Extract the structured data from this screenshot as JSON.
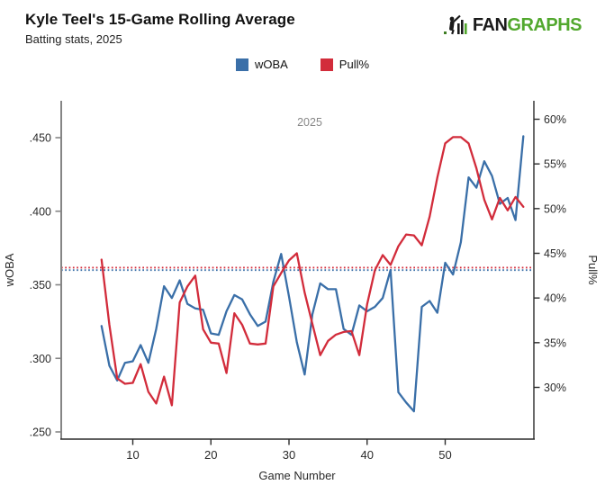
{
  "header": {
    "title": "Kyle Teel's 15-Game Rolling Average",
    "subtitle": "Batting stats, 2025"
  },
  "logo": {
    "fan": "FAN",
    "graphs": "GRAPHS",
    "green": "#52a82e",
    "dark": "#1a1a1a"
  },
  "legend": [
    {
      "label": "wOBA",
      "color": "#3a6fa8"
    },
    {
      "label": "Pull%",
      "color": "#d22c3b"
    }
  ],
  "chart_data": {
    "type": "line",
    "annotation": "2025",
    "xlabel": "Game Number",
    "ylabel_left": "wOBA",
    "ylabel_right": "Pull%",
    "grid": false,
    "legend_position": "top-center",
    "x_axis": {
      "ticks": [
        {
          "v": 10,
          "label": "10"
        },
        {
          "v": 20,
          "label": "20"
        },
        {
          "v": 30,
          "label": "30"
        },
        {
          "v": 40,
          "label": "40"
        },
        {
          "v": 50,
          "label": "50"
        }
      ]
    },
    "left_axis": {
      "range_anchor": {
        "v0": 0.25,
        "v1": 0.45
      },
      "ticks": [
        {
          "v": 0.25,
          "label": ".250"
        },
        {
          "v": 0.3,
          "label": ".300"
        },
        {
          "v": 0.35,
          "label": ".350"
        },
        {
          "v": 0.4,
          "label": ".400"
        },
        {
          "v": 0.45,
          "label": ".450"
        }
      ]
    },
    "right_axis": {
      "range_anchor": {
        "v0": 30,
        "v1": 60
      },
      "ticks": [
        {
          "v": 30,
          "label": "30%"
        },
        {
          "v": 35,
          "label": "35%"
        },
        {
          "v": 40,
          "label": "40%"
        },
        {
          "v": 45,
          "label": "45%"
        },
        {
          "v": 50,
          "label": "50%"
        },
        {
          "v": 55,
          "label": "55%"
        },
        {
          "v": 60,
          "label": "60%"
        }
      ]
    },
    "x": [
      6,
      7,
      8,
      9,
      10,
      11,
      12,
      13,
      14,
      15,
      16,
      17,
      18,
      19,
      20,
      21,
      22,
      23,
      24,
      25,
      26,
      27,
      28,
      29,
      30,
      31,
      32,
      33,
      34,
      35,
      36,
      37,
      38,
      39,
      40,
      41,
      42,
      43,
      44,
      45,
      46,
      47,
      48,
      49,
      50,
      51,
      52,
      53,
      54,
      55,
      56,
      57,
      58,
      59,
      60
    ],
    "series": [
      {
        "name": "wOBA",
        "axis": "left",
        "color": "#3a6fa8",
        "values": [
          0.322,
          0.295,
          0.285,
          0.297,
          0.298,
          0.309,
          0.297,
          0.32,
          0.349,
          0.341,
          0.353,
          0.337,
          0.334,
          0.333,
          0.317,
          0.316,
          0.332,
          0.343,
          0.34,
          0.33,
          0.322,
          0.325,
          0.352,
          0.371,
          0.342,
          0.311,
          0.289,
          0.33,
          0.351,
          0.347,
          0.347,
          0.32,
          0.316,
          0.336,
          0.332,
          0.335,
          0.341,
          0.36,
          0.277,
          0.27,
          0.264,
          0.335,
          0.339,
          0.331,
          0.365,
          0.357,
          0.379,
          0.423,
          0.416,
          0.434,
          0.424,
          0.405,
          0.409,
          0.394,
          0.451
        ]
      },
      {
        "name": "Pull%",
        "axis": "right",
        "color": "#d22c3b",
        "values": [
          44.3,
          37.0,
          31.0,
          30.4,
          30.5,
          32.6,
          29.5,
          28.2,
          31.2,
          28.0,
          39.5,
          41.3,
          42.5,
          36.5,
          35.0,
          34.9,
          31.6,
          38.3,
          37.0,
          34.9,
          34.8,
          34.9,
          41.3,
          42.8,
          44.2,
          45.0,
          40.6,
          37.1,
          33.6,
          35.2,
          35.9,
          36.2,
          36.3,
          33.6,
          39.3,
          43.1,
          44.8,
          43.7,
          45.8,
          47.1,
          47.0,
          45.9,
          49.1,
          53.5,
          57.3,
          58.0,
          58.0,
          57.3,
          54.5,
          51.0,
          48.8,
          51.2,
          49.8,
          51.3,
          50.2
        ]
      }
    ],
    "reference_lines": [
      {
        "series": "wOBA",
        "axis": "left",
        "value": 0.36,
        "style": "dotted",
        "color": "#3a6fa8"
      },
      {
        "series": "Pull%",
        "axis": "right",
        "value": 43.4,
        "style": "dotted",
        "color": "#d22c3b"
      }
    ]
  }
}
